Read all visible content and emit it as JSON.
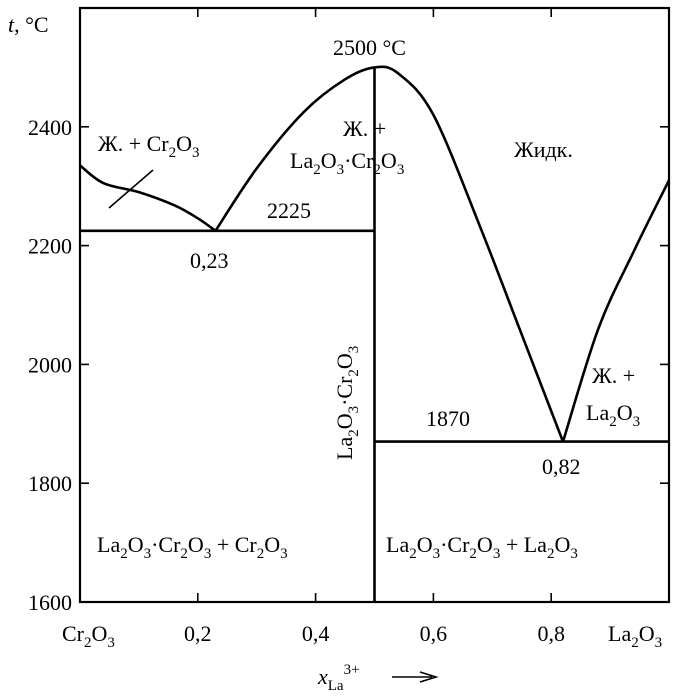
{
  "chart_data": {
    "type": "line",
    "title": "",
    "ylabel": "t, °C",
    "xlabel": "x_La3+ →",
    "xlim": [
      0,
      1
    ],
    "ylim": [
      1600,
      2600
    ],
    "yticks": [
      "1600",
      "1800",
      "2000",
      "2200",
      "2400"
    ],
    "xticks": [
      "0,2",
      "0,4",
      "0,6",
      "0,8"
    ],
    "x_end_labels": {
      "left": "Cr2O3",
      "right": "La2O3"
    },
    "series": [
      {
        "id": "liquidus-left",
        "x": [
          0,
          0.04,
          0.1,
          0.16,
          0.2,
          0.23
        ],
        "y": [
          2335,
          2305,
          2290,
          2268,
          2246,
          2225
        ]
      },
      {
        "id": "liquidus-compound",
        "x": [
          0.23,
          0.3,
          0.38,
          0.45,
          0.5,
          0.54,
          0.6,
          0.68,
          0.75,
          0.82
        ],
        "y": [
          2225,
          2330,
          2425,
          2480,
          2500,
          2490,
          2420,
          2230,
          2050,
          1870
        ]
      },
      {
        "id": "liquidus-right",
        "x": [
          0.82,
          0.88,
          0.94,
          1.0
        ],
        "y": [
          1870,
          2060,
          2190,
          2310
        ]
      },
      {
        "id": "eutectic-2225",
        "x": [
          0,
          0.5
        ],
        "y": [
          2225,
          2225
        ]
      },
      {
        "id": "eutectic-1870",
        "x": [
          0.5,
          1.0
        ],
        "y": [
          1870,
          1870
        ]
      },
      {
        "id": "compound-line",
        "x": [
          0.5,
          0.5
        ],
        "y": [
          1600,
          2500
        ]
      }
    ],
    "annotations": {
      "max_temp": "2500 °C",
      "eutectic_left_temp": "2225",
      "eutectic_left_comp": "0,23",
      "eutectic_right_temp": "1870",
      "eutectic_right_comp": "0,82",
      "region_liquid_cr": "Ж. + Cr2O3",
      "region_liquid_compound_1": "Ж. +",
      "region_liquid_compound_2": "La2O3·Cr2O3",
      "region_liquid": "Жидк.",
      "region_liquid_la_1": "Ж. +",
      "region_liquid_la_2": "La2O3",
      "compound_vertical": "La2O3·Cr2O3",
      "region_solid_left": "La2O3·Cr2O3 + Cr2O3",
      "region_solid_right": "La2O3·Cr2O3 + La2O3"
    }
  }
}
